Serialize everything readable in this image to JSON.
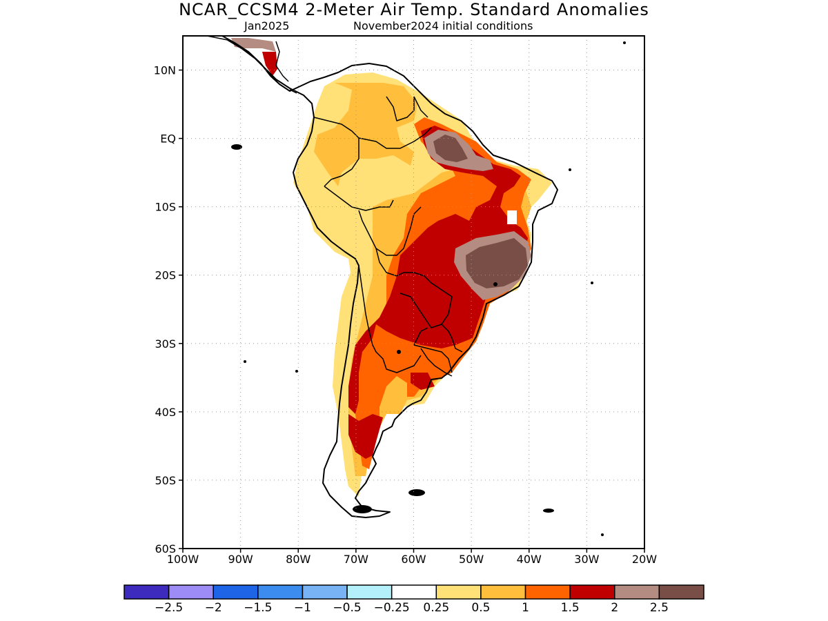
{
  "header": {
    "title": "NCAR_CCSM4 2-Meter Air Temp. Standard Anomalies",
    "month": "Jan2025",
    "ic": "November2024 initial conditions"
  },
  "map": {
    "region": "South America",
    "lon_range": [
      -100,
      -20
    ],
    "lat_range": [
      -60,
      15
    ],
    "lon_ticks": [
      {
        "value": -100,
        "label": "100W"
      },
      {
        "value": -90,
        "label": "90W"
      },
      {
        "value": -80,
        "label": "80W"
      },
      {
        "value": -70,
        "label": "70W"
      },
      {
        "value": -60,
        "label": "60W"
      },
      {
        "value": -50,
        "label": "50W"
      },
      {
        "value": -40,
        "label": "40W"
      },
      {
        "value": -30,
        "label": "30W"
      },
      {
        "value": -20,
        "label": "20W"
      }
    ],
    "lat_ticks": [
      {
        "value": 10,
        "label": "10N"
      },
      {
        "value": 0,
        "label": "EQ"
      },
      {
        "value": -10,
        "label": "10S"
      },
      {
        "value": -20,
        "label": "20S"
      },
      {
        "value": -30,
        "label": "30S"
      },
      {
        "value": -40,
        "label": "40S"
      },
      {
        "value": -50,
        "label": "50S"
      },
      {
        "value": -60,
        "label": "60S"
      }
    ],
    "grid": true
  },
  "colorbar": {
    "colors": [
      "#3c2bbd",
      "#9d8cf5",
      "#1e64e6",
      "#3c8cf0",
      "#78b4f5",
      "#b4f0fa",
      "#ffffff",
      "#ffe178",
      "#ffbe3c",
      "#ff6400",
      "#c00000",
      "#b48c82",
      "#784e46"
    ],
    "labels": [
      "-2.5",
      "-2",
      "-1.5",
      "-1",
      "-0.5",
      "-0.25",
      "0.25",
      "0.5",
      "1",
      "1.5",
      "2",
      "2.5"
    ]
  }
}
